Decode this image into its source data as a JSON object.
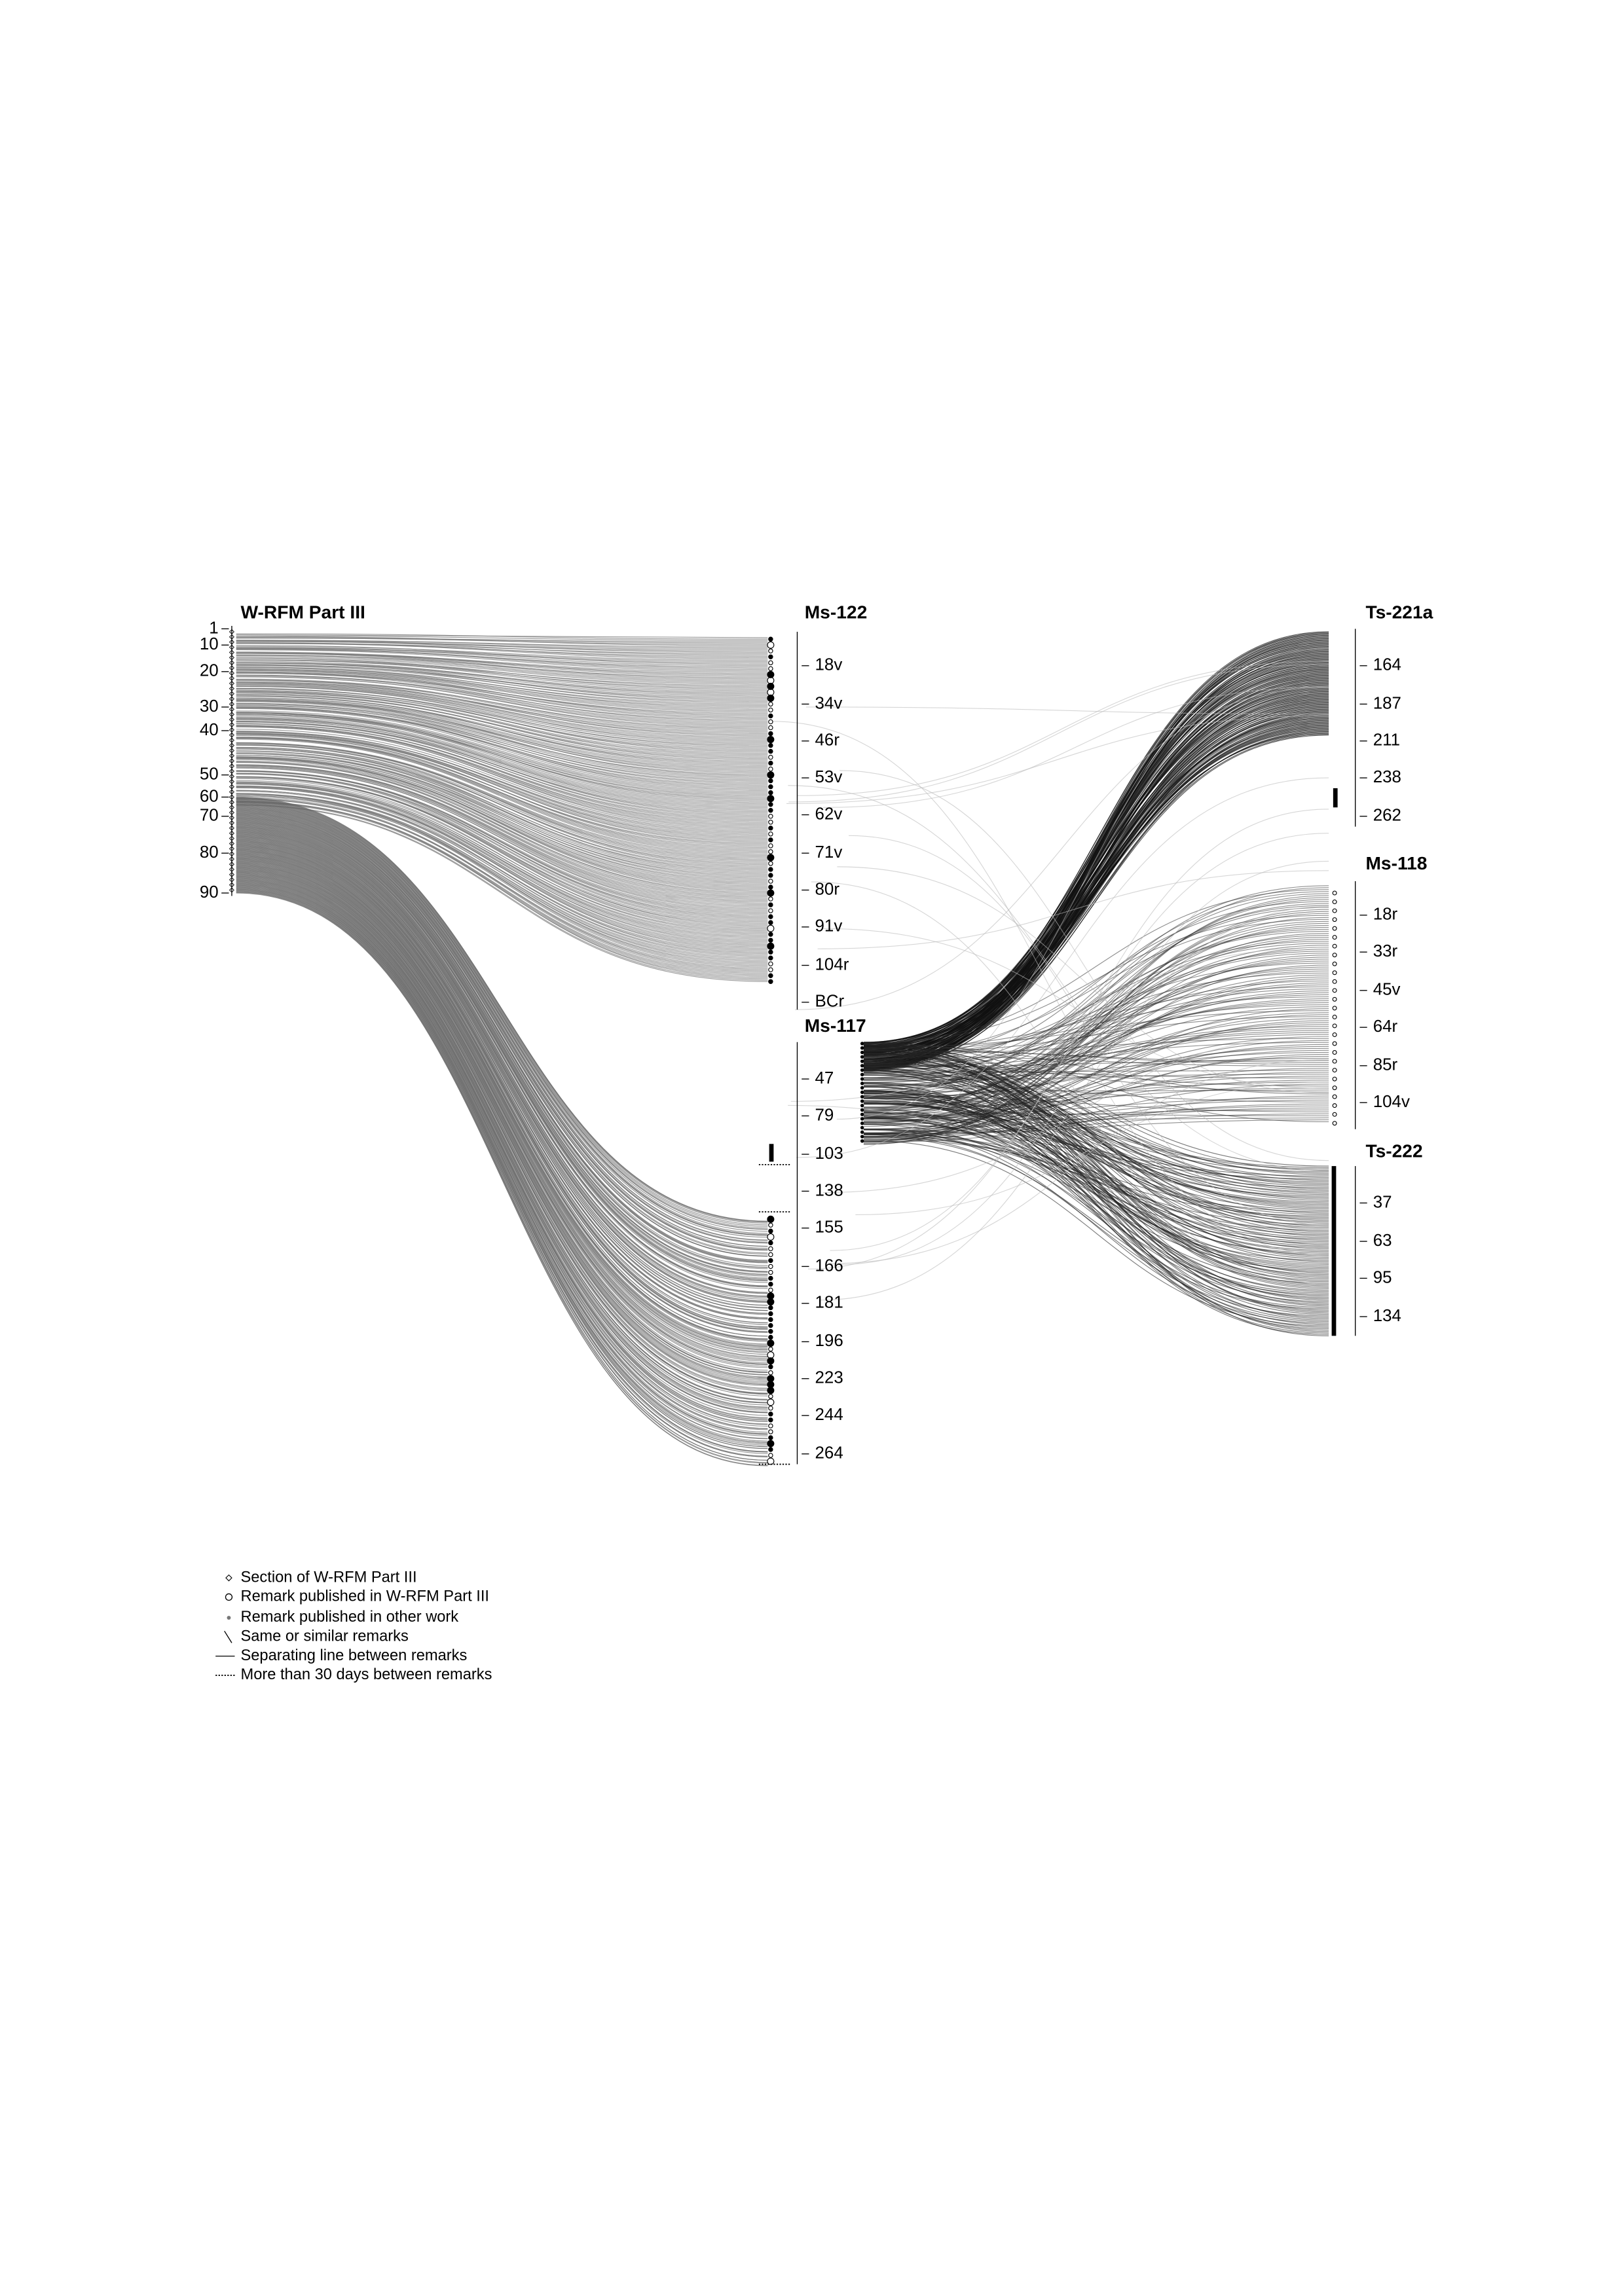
{
  "columns": [
    {
      "title": "W-RFM Part III",
      "ticks": [
        "1",
        "10",
        "20",
        "30",
        "40",
        "50",
        "60",
        "70",
        "80",
        "90"
      ]
    },
    {
      "title": "Ms-122",
      "ticks": [
        "18v",
        "34v",
        "46r",
        "53v",
        "62v",
        "71v",
        "80r",
        "91v",
        "104r",
        "BCr"
      ]
    },
    {
      "title": "Ms-117",
      "ticks": [
        "47",
        "79",
        "103",
        "138",
        "155",
        "166",
        "181",
        "196",
        "223",
        "244",
        "264"
      ]
    },
    {
      "title": "Ts-221a",
      "ticks": [
        "164",
        "187",
        "211",
        "238",
        "262"
      ]
    },
    {
      "title": "Ms-118",
      "ticks": [
        "18r",
        "33r",
        "45v",
        "64r",
        "85r",
        "104v"
      ]
    },
    {
      "title": "Ts-222",
      "ticks": [
        "37",
        "63",
        "95",
        "134"
      ]
    }
  ],
  "legend": [
    "Section of W-RFM Part III",
    "Remark published in W-RFM Part III",
    "Remark published in other work",
    "Same or similar remarks",
    "Separating line between remarks",
    "More than 30 days between remarks"
  ]
}
